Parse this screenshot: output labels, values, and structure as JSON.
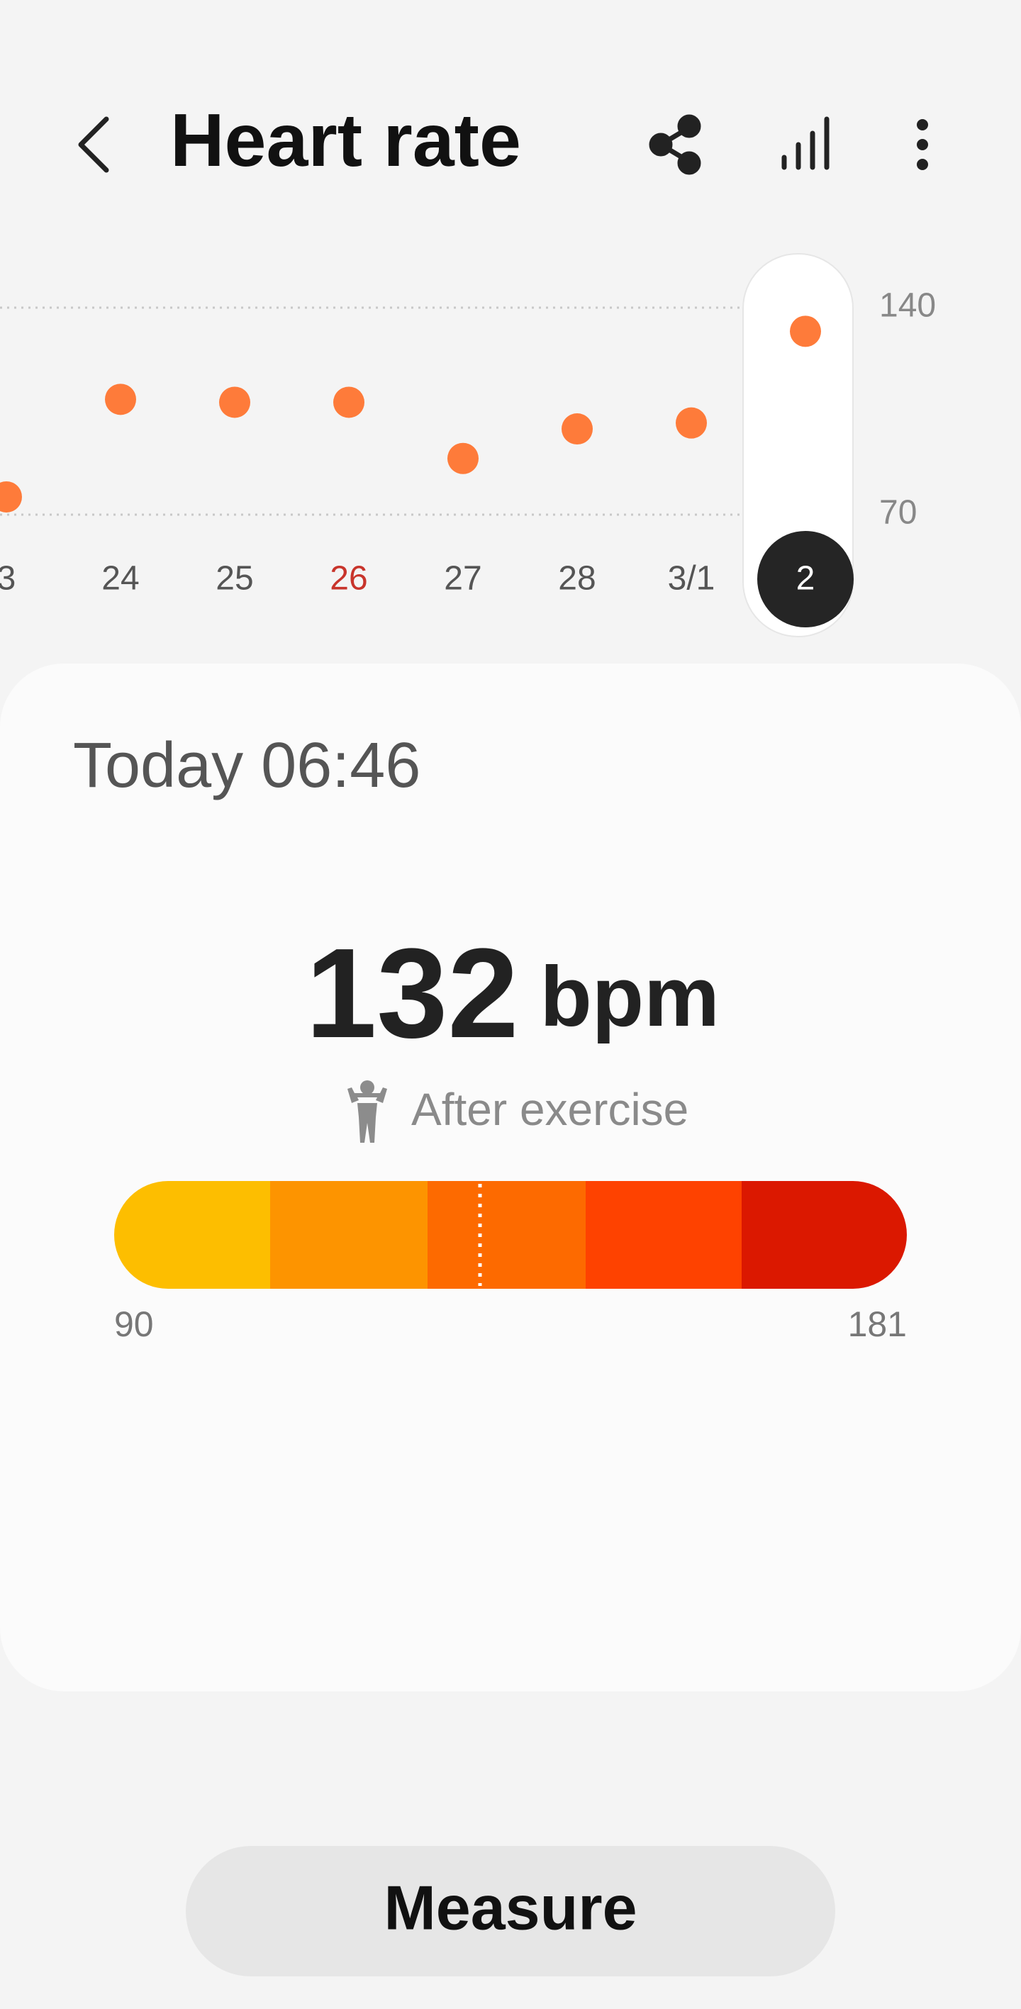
{
  "header": {
    "title": "Heart rate"
  },
  "chart_data": {
    "type": "scatter",
    "categories": [
      "3",
      "24",
      "25",
      "26",
      "27",
      "28",
      "3/1",
      "2"
    ],
    "values": [
      76,
      109,
      108,
      108,
      89,
      99,
      101,
      132
    ],
    "color": "#fe7b3a",
    "ylim": [
      70,
      140
    ],
    "yticks": [
      70,
      140
    ],
    "grid": true
  },
  "reading": {
    "time": "Today 06:46",
    "value": 132,
    "unit": "bpm",
    "status": "After exercise",
    "range": {
      "min": 90,
      "max": 181
    }
  },
  "actions": {
    "measure": "Measure"
  }
}
